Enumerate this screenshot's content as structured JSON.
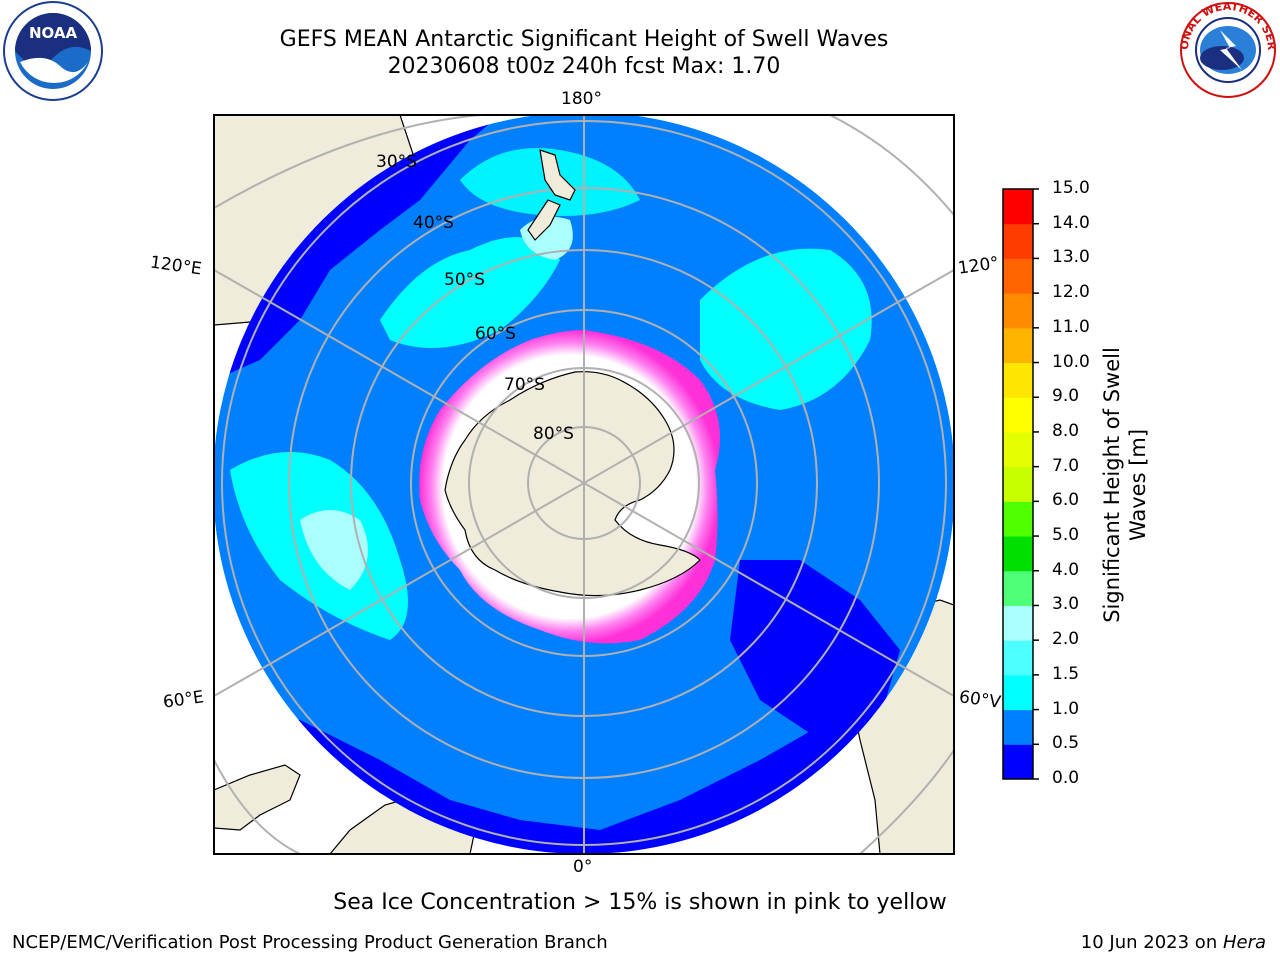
{
  "title": {
    "line1": "GEFS MEAN Antarctic Significant Height of Swell Waves",
    "line2": "20230608 t00z 240h fcst   Max: 1.70"
  },
  "map": {
    "longitude_labels": {
      "top": "180°",
      "bottom": "0°",
      "upper_left": "120°E",
      "lower_left": "60°E",
      "upper_right": "120°",
      "lower_right": "60°V"
    },
    "latitude_labels": [
      "30°S",
      "40°S",
      "50°S",
      "60°S",
      "70°S",
      "80°S"
    ]
  },
  "colorbar": {
    "label": "Significant Height of Swell Waves [m]",
    "ticks": [
      "0.0",
      "0.5",
      "1.0",
      "1.5",
      "2.0",
      "3.0",
      "4.0",
      "5.0",
      "6.0",
      "7.0",
      "8.0",
      "9.0",
      "10.0",
      "11.0",
      "12.0",
      "13.0",
      "14.0",
      "15.0"
    ],
    "colors": [
      "#0000ff",
      "#0080ff",
      "#00ffff",
      "#4dffff",
      "#aaffff",
      "#50ff78",
      "#00e000",
      "#50ff00",
      "#c8ff00",
      "#e6ff00",
      "#ffff00",
      "#ffe600",
      "#ffb400",
      "#ff8c00",
      "#ff6400",
      "#ff3c00",
      "#ff0000"
    ]
  },
  "note": "Sea Ice Concentration > 15% is shown in pink to yellow",
  "footer": {
    "left": "NCEP/EMC/Verification Post Processing Product Generation Branch",
    "right_date": "10 Jun 2023 on ",
    "right_host": "Hera"
  },
  "logos": {
    "noaa_text": "NOAA",
    "nws_text": "NATIONAL WEATHER SERVICE"
  },
  "colors": {
    "land": "#efecdc",
    "ice": "#ffffff",
    "ice_edge": "#ff40e0",
    "deep_blue": "#0000ff",
    "mid_blue": "#0080ff",
    "cyan": "#00ffff"
  }
}
